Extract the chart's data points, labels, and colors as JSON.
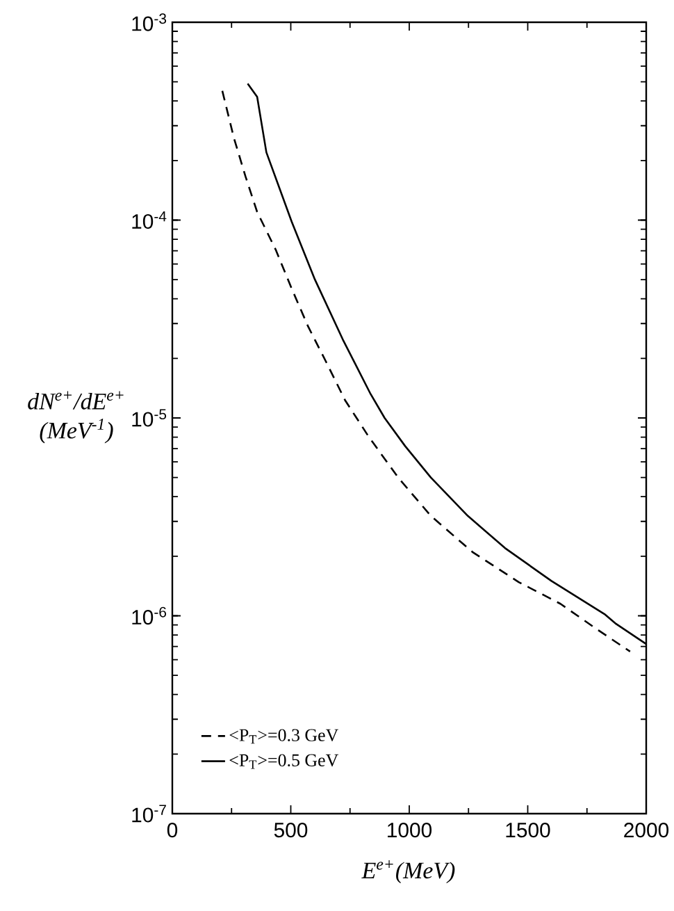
{
  "chart_data": {
    "type": "line",
    "xlabel": "E$^{e+}$(MeV)",
    "ylabel": "dN$^{e+}$/dE$^{e+}$ (MeV$^{-1}$)",
    "log": "y",
    "xlim": [
      0,
      2000
    ],
    "ylim": [
      1e-07,
      0.001
    ],
    "xticks": [
      0,
      500,
      1000,
      1500,
      2000
    ],
    "yticks": [
      {
        "value": 1e-07,
        "label": "10$^{-7}$"
      },
      {
        "value": 1e-06,
        "label": "10$^{-6}$"
      },
      {
        "value": 1e-05,
        "label": "10$^{-5}$"
      },
      {
        "value": 0.0001,
        "label": "10$^{-4}$"
      },
      {
        "value": 0.001,
        "label": "10$^{-3}$"
      }
    ],
    "legend": "bottom left",
    "grid": false,
    "marker": "none",
    "series": [
      {
        "name": "<P$_{T}$>=0.3 GeV",
        "color": "#000000",
        "line_style": "dashed",
        "x": [
          211,
          260,
          309,
          358,
          436,
          504,
          573,
          651,
          729,
          827,
          953,
          1091,
          1267,
          1462,
          1638,
          1795,
          1932
        ],
        "values": [
          0.00045,
          0.00026,
          0.000166,
          0.00011,
          7.1e-05,
          4.5e-05,
          2.9e-05,
          1.9e-05,
          1.23e-05,
          8.1e-06,
          5e-06,
          3.2e-06,
          2.1e-06,
          1.48e-06,
          1.15e-06,
          8.5e-07,
          6.6e-07
        ]
      },
      {
        "name": "<P$_{T}$>=0.5 GeV",
        "color": "#000000",
        "line_style": "solid",
        "x": [
          318,
          358,
          397,
          504,
          602,
          719,
          837,
          896,
          983,
          1091,
          1247,
          1404,
          1600,
          1824,
          1873,
          2000
        ],
        "values": [
          0.00049,
          0.00042,
          0.00022,
          9.8e-05,
          5e-05,
          2.5e-05,
          1.32e-05,
          1e-05,
          7.2e-06,
          5e-06,
          3.2e-06,
          2.2e-06,
          1.5e-06,
          1.02e-06,
          9.1e-07,
          7.2e-07
        ]
      }
    ]
  }
}
